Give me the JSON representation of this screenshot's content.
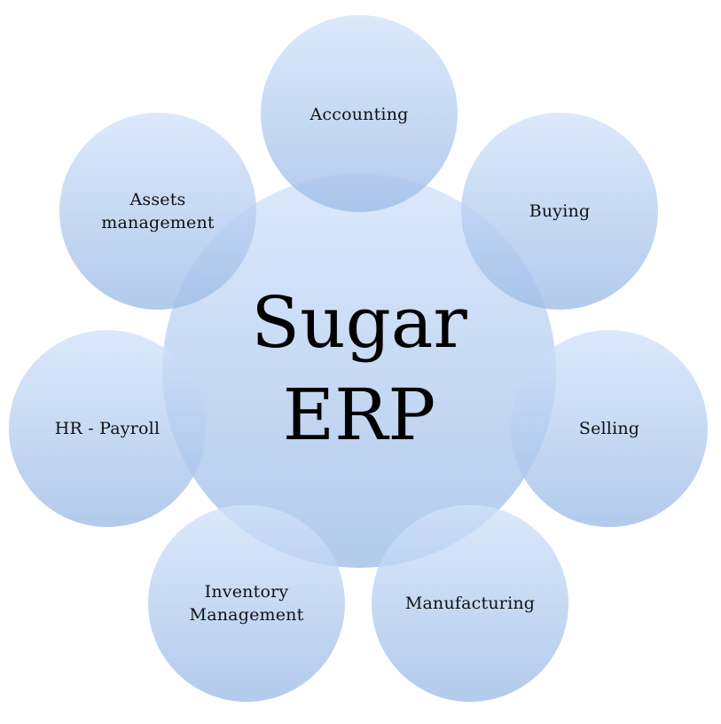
{
  "center": {
    "title": "Sugar\nERP"
  },
  "modules": [
    {
      "id": "accounting",
      "label": "Accounting"
    },
    {
      "id": "buying",
      "label": "Buying"
    },
    {
      "id": "selling",
      "label": "Selling"
    },
    {
      "id": "manufacturing",
      "label": "Manufacturing"
    },
    {
      "id": "inventory-management",
      "label": "Inventory\nManagement"
    },
    {
      "id": "hr-payroll",
      "label": "HR - Payroll"
    },
    {
      "id": "assets-management",
      "label": "Assets\nmanagement"
    }
  ],
  "colors": {
    "fill_top": "#cfe0fb",
    "fill_bottom": "#9ebde6",
    "overlap_tint": "#7ea4dc"
  }
}
